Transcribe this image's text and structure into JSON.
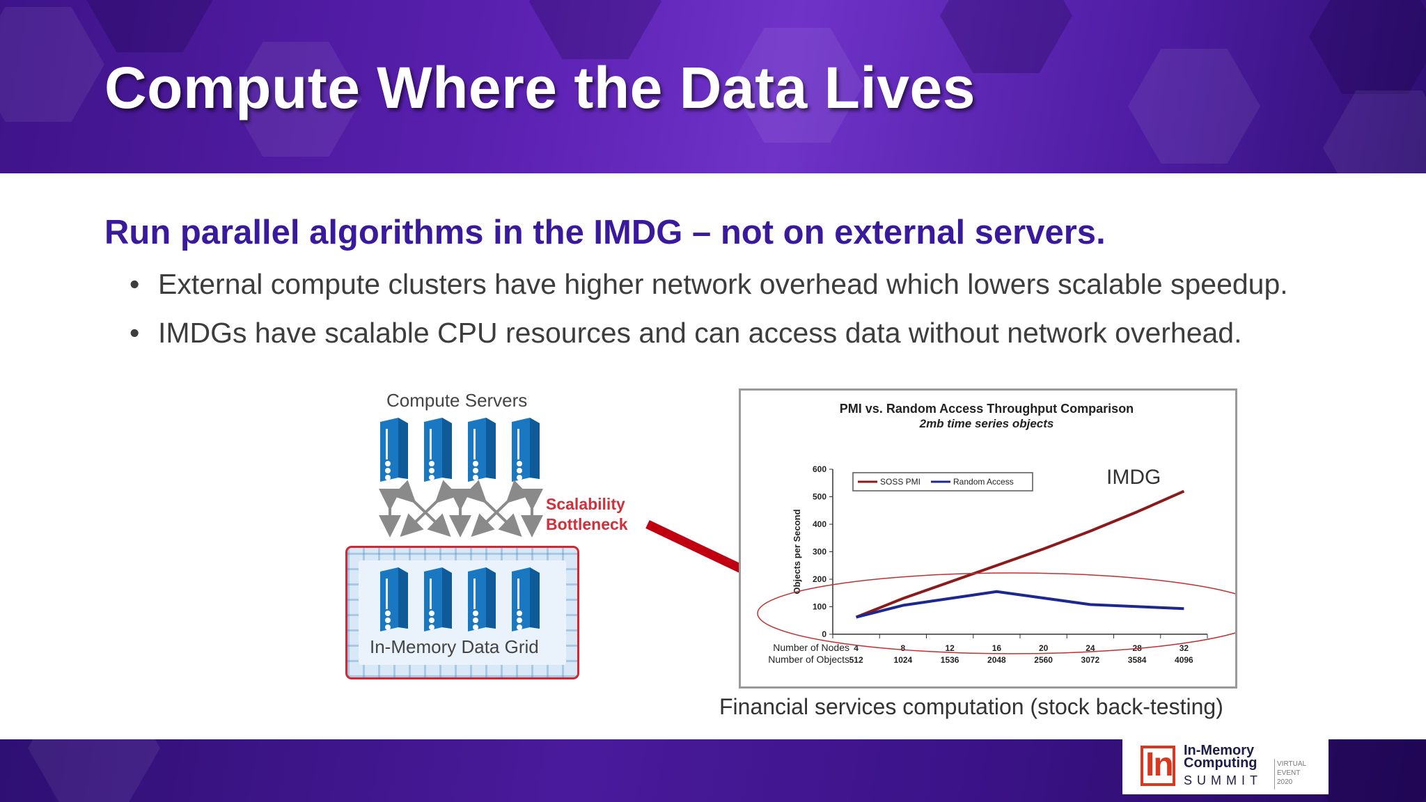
{
  "slide": {
    "title": "Compute Where the Data Lives",
    "subtitle": "Run parallel algorithms in the IMDG – not on external servers.",
    "bullets": [
      "External compute clusters have higher network overhead which lowers scalable speedup.",
      "IMDGs have scalable CPU resources and can access data without network overhead."
    ],
    "bullet_char": "•"
  },
  "diagram": {
    "compute_label": "Compute Servers",
    "bottleneck_label": [
      "Scalability",
      "Bottleneck"
    ],
    "grid_label": "In-Memory Data Grid",
    "accent_color": "#d0303a",
    "server_color": "#1a78c2"
  },
  "chart": {
    "caption": "Financial services computation (stock back-testing)",
    "annotation": "IMDG"
  },
  "chart_data": {
    "type": "line",
    "title": "PMI vs. Random Access Throughput Comparison",
    "subtitle": "2mb time series objects",
    "ylabel": "Objects per Second",
    "ylim": [
      0,
      600
    ],
    "yticks": [
      "0",
      "100",
      "200",
      "300",
      "400",
      "500",
      "600"
    ],
    "x_row_labels": [
      "Number of Nodes",
      "Number of Objects"
    ],
    "x_nodes": [
      "4",
      "8",
      "12",
      "16",
      "20",
      "24",
      "28",
      "32"
    ],
    "x_objects": [
      "512",
      "1024",
      "1536",
      "2048",
      "2560",
      "3072",
      "3584",
      "4096"
    ],
    "legend_position": "top-left",
    "series": [
      {
        "name": "SOSS PMI",
        "color": "#8b1a1a",
        "values": [
          62,
          130,
          190,
          250,
          310,
          375,
          445,
          520
        ]
      },
      {
        "name": "Random Access",
        "color": "#1c2890",
        "values": [
          62,
          105,
          130,
          155,
          null,
          108,
          null,
          93
        ]
      }
    ]
  },
  "logo": {
    "line1": "In-Memory",
    "line2": "Computing",
    "line3": "SUMMIT",
    "mark": "In",
    "side": [
      "VIRTUAL",
      "EVENT",
      "2020"
    ],
    "accent": "#d83820"
  },
  "colors": {
    "header": "#5a20b0",
    "subtitle": "#3a1a9c",
    "body_text": "#3d3d3d"
  }
}
